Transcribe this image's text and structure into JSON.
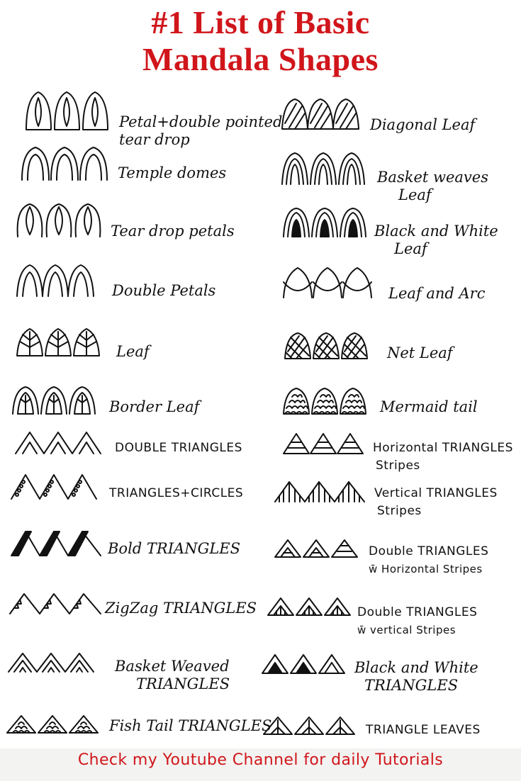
{
  "title": {
    "line1": "#1 List of Basic",
    "line2": "Mandala Shapes"
  },
  "colors": {
    "title": "#d0161b",
    "ink": "#111111",
    "footer_bg": "#f3f3f1"
  },
  "left_column": [
    {
      "icon": "petal-double-pointed-tear-drop-icon",
      "label": "Petal+double pointed",
      "label2": "tear drop"
    },
    {
      "icon": "temple-domes-icon",
      "label": "Temple domes"
    },
    {
      "icon": "tear-drop-petals-icon",
      "label": "Tear drop petals"
    },
    {
      "icon": "double-petals-icon",
      "label": "Double Petals"
    },
    {
      "icon": "leaf-icon",
      "label": "Leaf"
    },
    {
      "icon": "border-leaf-icon",
      "label": "Border Leaf"
    },
    {
      "icon": "double-triangles-icon",
      "label": "DOUBLE TRIANGLES"
    },
    {
      "icon": "triangles-circles-icon",
      "label": "TRIANGLES+CIRCLES"
    },
    {
      "icon": "bold-triangles-icon",
      "label": "Bold TRIANGLES"
    },
    {
      "icon": "zigzag-triangles-icon",
      "label": "ZigZag TRIANGLES"
    },
    {
      "icon": "basket-weaved-triangles-icon",
      "label": "Basket Weaved",
      "label2": "TRIANGLES"
    },
    {
      "icon": "fish-tail-triangles-icon",
      "label": "Fish Tail TRIANGLES"
    }
  ],
  "right_column": [
    {
      "icon": "diagonal-leaf-icon",
      "label": "Diagonal Leaf"
    },
    {
      "icon": "basket-weaves-leaf-icon",
      "label": "Basket weaves",
      "label2": "Leaf"
    },
    {
      "icon": "black-white-leaf-icon",
      "label": "Black and White",
      "label2": "Leaf"
    },
    {
      "icon": "leaf-and-arc-icon",
      "label": "Leaf and Arc"
    },
    {
      "icon": "net-leaf-icon",
      "label": "Net Leaf"
    },
    {
      "icon": "mermaid-tail-icon",
      "label": "Mermaid tail"
    },
    {
      "icon": "horizontal-triangles-stripes-icon",
      "label": "Horizontal TRIANGLES",
      "label2": "Stripes"
    },
    {
      "icon": "vertical-triangles-stripes-icon",
      "label": "Vertical TRIANGLES",
      "label2": "Stripes"
    },
    {
      "icon": "double-triangles-horizontal-stripes-icon",
      "label": "Double TRIANGLES",
      "label2": "w̄ Horizontal Stripes"
    },
    {
      "icon": "double-triangles-vertical-stripes-icon",
      "label": "Double TRIANGLES",
      "label2": "w̄ vertical Stripes"
    },
    {
      "icon": "black-white-triangles-icon",
      "label": "Black and White",
      "label2": "TRIANGLES"
    },
    {
      "icon": "triangle-leaves-icon",
      "label": "TRIANGLE LEAVES"
    }
  ],
  "footer": {
    "text": "Check my Youtube Channel  for daily Tutorials"
  }
}
